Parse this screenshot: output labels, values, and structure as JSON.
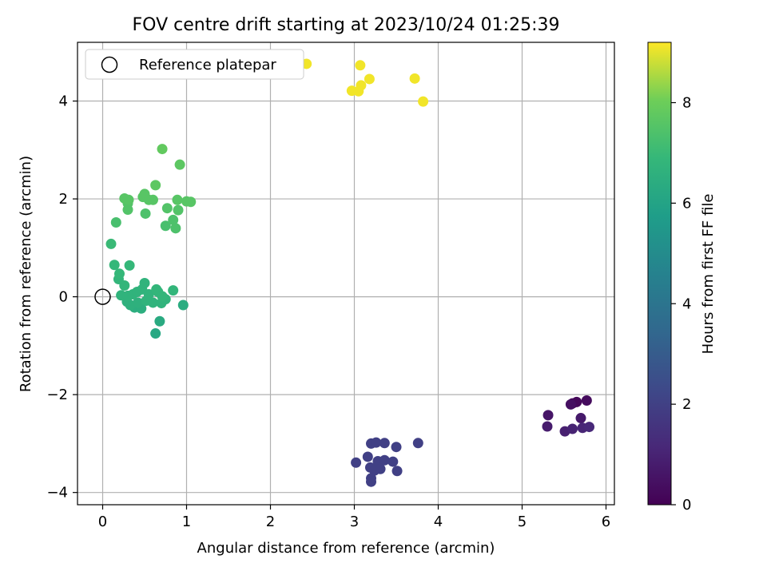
{
  "chart_data": {
    "type": "scatter",
    "title": "FOV centre drift starting at 2023/10/24 01:25:39",
    "xlabel": "Angular distance from reference (arcmin)",
    "ylabel": "Rotation from reference (arcmin)",
    "xlim": [
      -0.3,
      6.1
    ],
    "ylim": [
      -4.25,
      5.2
    ],
    "xticks": [
      0,
      1,
      2,
      3,
      4,
      5,
      6
    ],
    "yticks": [
      -4,
      -2,
      0,
      2,
      4
    ],
    "grid": true,
    "legend": {
      "position": "top-left",
      "entries": [
        "Reference platepar"
      ]
    },
    "reference_point": {
      "x": 0,
      "y": 0,
      "label": "Reference platepar"
    },
    "colorbar": {
      "label": "Hours from first FF file",
      "min": 0,
      "max": 9.2,
      "ticks": [
        0,
        2,
        4,
        6,
        8
      ],
      "colormap": "viridis"
    },
    "points": [
      {
        "x": 5.6,
        "y": -2.18,
        "t": 0.1
      },
      {
        "x": 5.65,
        "y": -2.15,
        "t": 0.2
      },
      {
        "x": 5.77,
        "y": -2.12,
        "t": 0.3
      },
      {
        "x": 5.58,
        "y": -2.2,
        "t": 0.4
      },
      {
        "x": 5.31,
        "y": -2.42,
        "t": 0.6
      },
      {
        "x": 5.7,
        "y": -2.48,
        "t": 0.7
      },
      {
        "x": 5.3,
        "y": -2.65,
        "t": 0.8
      },
      {
        "x": 5.51,
        "y": -2.75,
        "t": 0.9
      },
      {
        "x": 5.6,
        "y": -2.7,
        "t": 1.0
      },
      {
        "x": 5.72,
        "y": -2.68,
        "t": 1.1
      },
      {
        "x": 5.8,
        "y": -2.66,
        "t": 1.2
      },
      {
        "x": 3.2,
        "y": -3.0,
        "t": 2.0
      },
      {
        "x": 3.26,
        "y": -2.98,
        "t": 2.0
      },
      {
        "x": 3.36,
        "y": -2.99,
        "t": 2.0
      },
      {
        "x": 3.76,
        "y": -2.99,
        "t": 2.0
      },
      {
        "x": 3.5,
        "y": -3.07,
        "t": 2.0
      },
      {
        "x": 3.16,
        "y": -3.27,
        "t": 2.0
      },
      {
        "x": 3.28,
        "y": -3.36,
        "t": 2.0
      },
      {
        "x": 3.36,
        "y": -3.34,
        "t": 2.0
      },
      {
        "x": 3.02,
        "y": -3.39,
        "t": 2.0
      },
      {
        "x": 3.46,
        "y": -3.37,
        "t": 2.0
      },
      {
        "x": 3.19,
        "y": -3.49,
        "t": 2.0
      },
      {
        "x": 3.24,
        "y": -3.55,
        "t": 2.0
      },
      {
        "x": 3.31,
        "y": -3.52,
        "t": 2.0
      },
      {
        "x": 3.51,
        "y": -3.56,
        "t": 2.0
      },
      {
        "x": 3.2,
        "y": -3.71,
        "t": 2.0
      },
      {
        "x": 3.2,
        "y": -3.78,
        "t": 2.0
      },
      {
        "x": 0.63,
        "y": -0.75,
        "t": 6.2
      },
      {
        "x": 0.68,
        "y": -0.5,
        "t": 6.3
      },
      {
        "x": 0.96,
        "y": -0.17,
        "t": 6.4
      },
      {
        "x": 0.38,
        "y": -0.22,
        "t": 6.5
      },
      {
        "x": 0.46,
        "y": -0.24,
        "t": 6.5
      },
      {
        "x": 0.33,
        "y": -0.17,
        "t": 6.6
      },
      {
        "x": 0.29,
        "y": -0.1,
        "t": 6.6
      },
      {
        "x": 0.42,
        "y": -0.12,
        "t": 6.6
      },
      {
        "x": 0.52,
        "y": -0.08,
        "t": 6.7
      },
      {
        "x": 0.6,
        "y": -0.12,
        "t": 6.7
      },
      {
        "x": 0.7,
        "y": -0.13,
        "t": 6.7
      },
      {
        "x": 0.75,
        "y": -0.05,
        "t": 6.7
      },
      {
        "x": 0.22,
        "y": 0.03,
        "t": 6.7
      },
      {
        "x": 0.3,
        "y": 0.02,
        "t": 6.7
      },
      {
        "x": 0.36,
        "y": 0.05,
        "t": 6.7
      },
      {
        "x": 0.41,
        "y": 0.1,
        "t": 6.7
      },
      {
        "x": 0.47,
        "y": 0.15,
        "t": 6.7
      },
      {
        "x": 0.5,
        "y": 0.28,
        "t": 6.7
      },
      {
        "x": 0.55,
        "y": 0.05,
        "t": 6.7
      },
      {
        "x": 0.64,
        "y": 0.15,
        "t": 6.8
      },
      {
        "x": 0.66,
        "y": 0.1,
        "t": 6.8
      },
      {
        "x": 0.71,
        "y": 0.01,
        "t": 6.8
      },
      {
        "x": 0.84,
        "y": 0.13,
        "t": 6.8
      },
      {
        "x": 0.26,
        "y": 0.23,
        "t": 6.8
      },
      {
        "x": 0.19,
        "y": 0.36,
        "t": 6.8
      },
      {
        "x": 0.2,
        "y": 0.47,
        "t": 6.9
      },
      {
        "x": 0.14,
        "y": 0.65,
        "t": 6.9
      },
      {
        "x": 0.32,
        "y": 0.64,
        "t": 6.9
      },
      {
        "x": 0.1,
        "y": 1.08,
        "t": 7.0
      },
      {
        "x": 0.16,
        "y": 1.52,
        "t": 7.3
      },
      {
        "x": 0.75,
        "y": 1.45,
        "t": 7.3
      },
      {
        "x": 0.87,
        "y": 1.4,
        "t": 7.4
      },
      {
        "x": 0.84,
        "y": 1.57,
        "t": 7.4
      },
      {
        "x": 0.51,
        "y": 1.7,
        "t": 7.4
      },
      {
        "x": 0.77,
        "y": 1.81,
        "t": 7.5
      },
      {
        "x": 0.9,
        "y": 1.77,
        "t": 7.5
      },
      {
        "x": 0.3,
        "y": 1.78,
        "t": 7.5
      },
      {
        "x": 0.3,
        "y": 1.91,
        "t": 7.5
      },
      {
        "x": 0.26,
        "y": 2.01,
        "t": 7.6
      },
      {
        "x": 0.31,
        "y": 1.98,
        "t": 7.6
      },
      {
        "x": 0.48,
        "y": 2.04,
        "t": 7.6
      },
      {
        "x": 0.5,
        "y": 2.1,
        "t": 7.6
      },
      {
        "x": 0.55,
        "y": 1.98,
        "t": 7.6
      },
      {
        "x": 0.6,
        "y": 1.98,
        "t": 7.6
      },
      {
        "x": 0.89,
        "y": 1.98,
        "t": 7.6
      },
      {
        "x": 1.0,
        "y": 1.95,
        "t": 7.6
      },
      {
        "x": 1.05,
        "y": 1.94,
        "t": 7.6
      },
      {
        "x": 0.63,
        "y": 2.28,
        "t": 7.7
      },
      {
        "x": 0.92,
        "y": 2.7,
        "t": 7.7
      },
      {
        "x": 0.71,
        "y": 3.02,
        "t": 7.8
      },
      {
        "x": 2.43,
        "y": 4.76,
        "t": 9.1
      },
      {
        "x": 3.07,
        "y": 4.73,
        "t": 9.1
      },
      {
        "x": 3.72,
        "y": 4.46,
        "t": 9.1
      },
      {
        "x": 3.18,
        "y": 4.45,
        "t": 9.1
      },
      {
        "x": 3.08,
        "y": 4.32,
        "t": 9.1
      },
      {
        "x": 2.97,
        "y": 4.21,
        "t": 9.1
      },
      {
        "x": 3.05,
        "y": 4.2,
        "t": 9.1
      },
      {
        "x": 3.82,
        "y": 3.99,
        "t": 9.1
      }
    ]
  }
}
